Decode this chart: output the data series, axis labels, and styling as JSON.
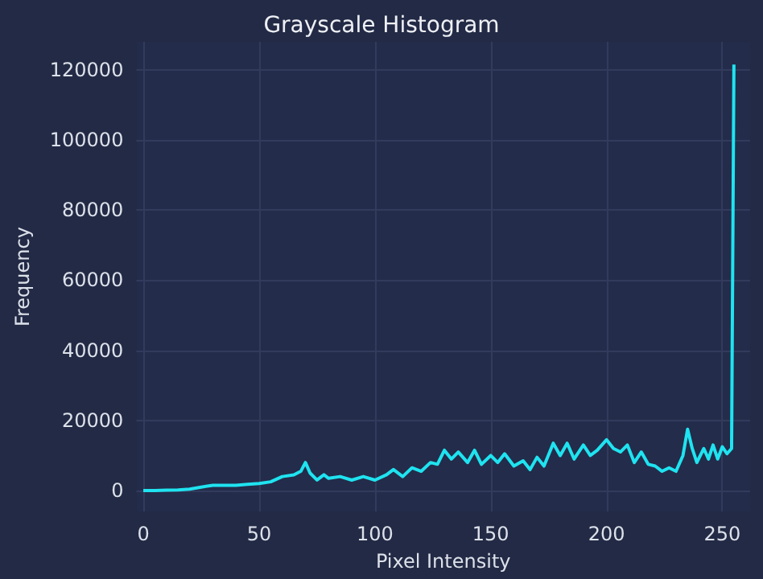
{
  "chart_data": {
    "type": "line",
    "title": "Grayscale Histogram",
    "xlabel": "Pixel Intensity",
    "ylabel": "Frequency",
    "x": [
      0,
      5,
      10,
      15,
      20,
      25,
      30,
      35,
      40,
      45,
      50,
      55,
      60,
      65,
      68,
      70,
      72,
      75,
      78,
      80,
      85,
      90,
      95,
      100,
      105,
      108,
      112,
      116,
      120,
      124,
      127,
      130,
      133,
      136,
      140,
      143,
      146,
      150,
      153,
      156,
      160,
      164,
      167,
      170,
      173,
      177,
      180,
      183,
      186,
      190,
      193,
      196,
      200,
      203,
      206,
      209,
      212,
      215,
      218,
      221,
      224,
      227,
      230,
      233,
      235,
      237,
      239,
      242,
      244,
      246,
      248,
      250,
      252,
      254,
      255
    ],
    "series": [
      {
        "color": "#1fe3f0",
        "values": [
          0,
          0,
          100,
          200,
          400,
          1000,
          1500,
          1500,
          1500,
          1800,
          2000,
          2500,
          4000,
          4500,
          5500,
          8000,
          5000,
          3000,
          4500,
          3500,
          4000,
          3000,
          4000,
          3000,
          4500,
          6000,
          4000,
          6500,
          5500,
          8000,
          7500,
          11500,
          9000,
          11000,
          8000,
          11500,
          7500,
          10000,
          8000,
          10500,
          7000,
          8500,
          6000,
          9500,
          7000,
          13500,
          10000,
          13500,
          9000,
          13000,
          10000,
          11500,
          14500,
          12000,
          11000,
          13000,
          8000,
          11000,
          7500,
          7000,
          5500,
          6500,
          5500,
          10000,
          17500,
          12000,
          8000,
          12000,
          9000,
          13000,
          9000,
          12500,
          10500,
          12000,
          121500
        ]
      }
    ],
    "xlim": [
      -3,
      262
    ],
    "ylim": [
      -6000,
      128000
    ],
    "xticks": [
      0,
      50,
      100,
      150,
      200,
      250
    ],
    "yticks": [
      0,
      20000,
      40000,
      60000,
      80000,
      100000,
      120000
    ],
    "grid": true,
    "marker": "none",
    "line_style": "solid"
  }
}
